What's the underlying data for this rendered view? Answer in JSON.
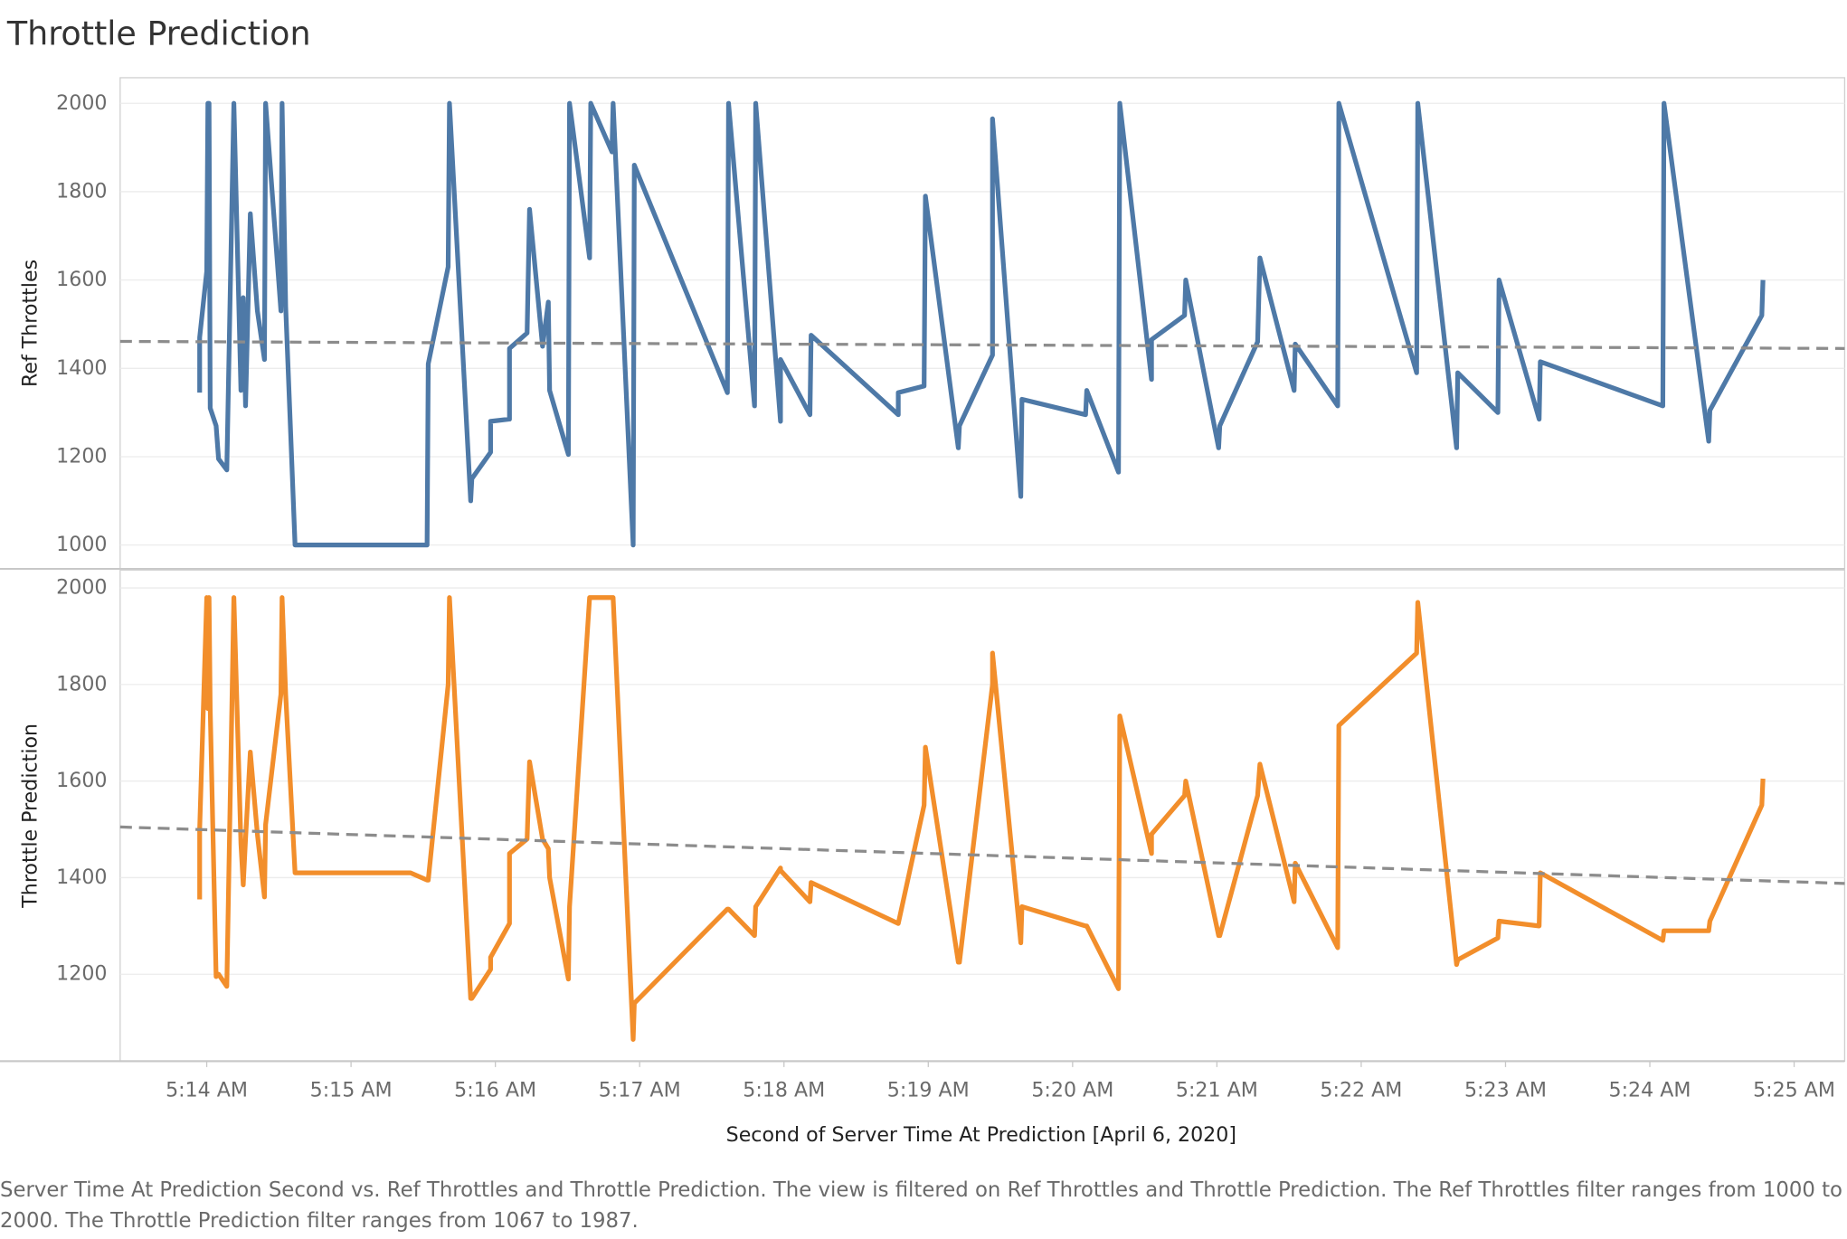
{
  "chart_data": {
    "type": "line",
    "title": "Throttle Prediction",
    "xlabel": "Second of Server Time At Prediction [April 6, 2020]",
    "caption": "Server Time At Prediction Second vs. Ref Throttles and Throttle Prediction. The view is filtered on Ref Throttles and Throttle Prediction. The Ref Throttles filter ranges from 1000 to 2000. The Throttle Prediction filter ranges from 1067 to 1987.",
    "xlim": [
      313.4,
      325.35
    ],
    "xticks": [
      {
        "value": 314,
        "label": "5:14 AM"
      },
      {
        "value": 315,
        "label": "5:15 AM"
      },
      {
        "value": 316,
        "label": "5:16 AM"
      },
      {
        "value": 317,
        "label": "5:17 AM"
      },
      {
        "value": 318,
        "label": "5:18 AM"
      },
      {
        "value": 319,
        "label": "5:19 AM"
      },
      {
        "value": 320,
        "label": "5:20 AM"
      },
      {
        "value": 321,
        "label": "5:21 AM"
      },
      {
        "value": 322,
        "label": "5:22 AM"
      },
      {
        "value": 323,
        "label": "5:23 AM"
      },
      {
        "value": 324,
        "label": "5:24 AM"
      },
      {
        "value": 325,
        "label": "5:25 AM"
      }
    ],
    "x": [
      313.951,
      313.951,
      314,
      314.008,
      314.016,
      314.024,
      314.065,
      314.082,
      314.139,
      314.188,
      314.237,
      314.253,
      314.269,
      314.302,
      314.351,
      314.4,
      314.408,
      314.514,
      314.522,
      314.547,
      314.612,
      315.412,
      315.527,
      315.535,
      315.673,
      315.682,
      315.829,
      315.837,
      315.967,
      315.967,
      316.098,
      316.098,
      316.22,
      316.237,
      316.327,
      316.367,
      316.376,
      316.506,
      316.514,
      316.653,
      316.661,
      316.808,
      316.816,
      316.955,
      316.963,
      317.608,
      317.616,
      317.796,
      317.804,
      317.976,
      317.976,
      318.18,
      318.188,
      318.792,
      318.792,
      318.971,
      318.98,
      319.208,
      319.216,
      319.445,
      319.445,
      319.641,
      319.649,
      320.09,
      320.098,
      320.318,
      320.327,
      320.547,
      320.547,
      320.776,
      320.784,
      321.012,
      321.02,
      321.282,
      321.298,
      321.535,
      321.543,
      321.837,
      321.845,
      322.384,
      322.392,
      322.661,
      322.669,
      322.947,
      322.955,
      323.233,
      323.241,
      324.09,
      324.098,
      324.408,
      324.416,
      324.776,
      324.784
    ],
    "panels": [
      {
        "ylabel": "Ref Throttles",
        "ylim": [
          946,
          2058
        ],
        "yticks": [
          1000,
          1200,
          1400,
          1600,
          1800,
          2000
        ],
        "grid": true,
        "series": [
          {
            "color": "#4e79a7",
            "trend": [
              1461,
              1445
            ],
            "values": [
              1345,
              1470,
              1620,
              2000,
              2000,
              1310,
              1270,
              1195,
              1170,
              2000,
              1350,
              1560,
              1315,
              1750,
              1530,
              1420,
              2000,
              1530,
              2000,
              1540,
              1000,
              1000,
              1000,
              1410,
              1630,
              2000,
              1100,
              1150,
              1210,
              1280,
              1285,
              1445,
              1480,
              1760,
              1450,
              1550,
              1350,
              1205,
              2000,
              1650,
              2000,
              1890,
              2000,
              1000,
              1860,
              1345,
              2000,
              1315,
              2000,
              1280,
              1420,
              1295,
              1475,
              1295,
              1345,
              1360,
              1790,
              1220,
              1270,
              1430,
              1965,
              1110,
              1330,
              1295,
              1350,
              1165,
              2000,
              1375,
              1465,
              1520,
              1600,
              1220,
              1270,
              1460,
              1650,
              1350,
              1455,
              1315,
              2000,
              1390,
              2000,
              1220,
              1390,
              1300,
              1600,
              1285,
              1415,
              1315,
              2000,
              1235,
              1305,
              1520,
              1600
            ]
          }
        ]
      },
      {
        "ylabel": "Throttle Prediction",
        "ylim": [
          1020,
          2037
        ],
        "yticks": [
          1200,
          1400,
          1600,
          1800,
          2000
        ],
        "grid": true,
        "series": [
          {
            "color": "#f28e2b",
            "trend": [
              1505,
              1388
            ],
            "values": [
              1355,
              1500,
              1980,
              1750,
              1980,
              1750,
              1195,
              1200,
              1175,
              1980,
              1470,
              1385,
              1480,
              1660,
              1490,
              1360,
              1510,
              1780,
              1980,
              1780,
              1410,
              1410,
              1395,
              1395,
              1800,
              1980,
              1150,
              1150,
              1210,
              1235,
              1305,
              1450,
              1480,
              1640,
              1480,
              1460,
              1400,
              1190,
              1340,
              1980,
              1980,
              1980,
              1980,
              1065,
              1140,
              1335,
              1335,
              1280,
              1340,
              1420,
              1415,
              1350,
              1390,
              1305,
              1305,
              1550,
              1670,
              1225,
              1225,
              1800,
              1865,
              1265,
              1340,
              1300,
              1300,
              1170,
              1735,
              1450,
              1490,
              1570,
              1600,
              1280,
              1280,
              1570,
              1635,
              1350,
              1430,
              1255,
              1715,
              1865,
              1970,
              1220,
              1230,
              1275,
              1310,
              1300,
              1410,
              1270,
              1290,
              1290,
              1310,
              1550,
              1605
            ]
          }
        ]
      }
    ]
  }
}
